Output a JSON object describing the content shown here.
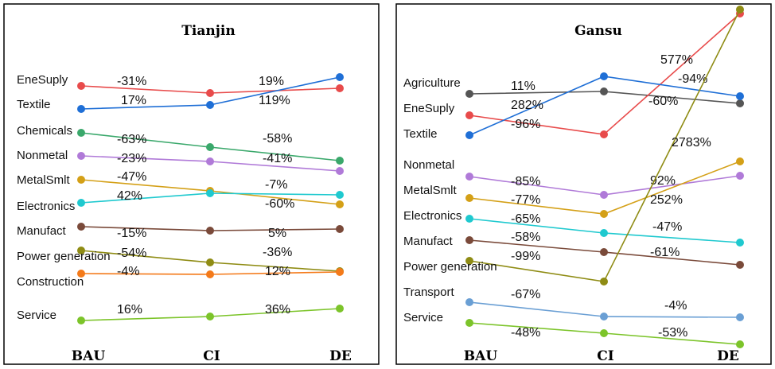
{
  "chart_data": [
    {
      "type": "line",
      "title": "Tianjin",
      "categories": [
        "BAU",
        "CI",
        "DE"
      ],
      "series": [
        {
          "name": "EneSuply",
          "color": "#e84b4b",
          "change_labels": [
            "-31%",
            "19%"
          ]
        },
        {
          "name": "Textile",
          "color": "#1f6fd6",
          "change_labels": [
            "17%",
            "119%"
          ]
        },
        {
          "name": "Chemicals",
          "color": "#3aa86b",
          "change_labels": [
            "-63%",
            "-58%"
          ]
        },
        {
          "name": "Nonmetal",
          "color": "#b07ad8",
          "change_labels": [
            "-23%",
            "-41%"
          ]
        },
        {
          "name": "MetalSmlt",
          "color": "#d4a017",
          "change_labels": [
            "-47%",
            "-7%"
          ]
        },
        {
          "name": "Electronics",
          "color": "#1fc9cf",
          "change_labels": [
            "42%",
            "-60%"
          ]
        },
        {
          "name": "Manufact",
          "color": "#7a4a3a",
          "change_labels": [
            "-15%",
            "5%"
          ]
        },
        {
          "name": "Power generation",
          "color": "#8f8c14",
          "change_labels": [
            "-54%",
            "-36%"
          ]
        },
        {
          "name": "Construction",
          "color": "#f47a1a",
          "change_labels": [
            "-4%",
            "12%"
          ]
        },
        {
          "name": "Service",
          "color": "#7cc42a",
          "change_labels": [
            "16%",
            "36%"
          ]
        }
      ]
    },
    {
      "type": "line",
      "title": "Gansu",
      "categories": [
        "BAU",
        "CI",
        "DE"
      ],
      "series": [
        {
          "name": "Agriculture",
          "color": "#555555",
          "change_labels": [
            "11%",
            "-60%"
          ]
        },
        {
          "name": "EneSuply",
          "color": "#e84b4b",
          "change_labels": [
            "-96%",
            "577%"
          ]
        },
        {
          "name": "Textile",
          "color": "#1f6fd6",
          "change_labels": [
            "282%",
            "-94%"
          ]
        },
        {
          "name": "Nonmetal",
          "color": "#b07ad8",
          "change_labels": [
            "-85%",
            "92%"
          ]
        },
        {
          "name": "MetalSmlt",
          "color": "#d4a017",
          "change_labels": [
            "-77%",
            "252%"
          ]
        },
        {
          "name": "Electronics",
          "color": "#1fc9cf",
          "change_labels": [
            "-65%",
            "-47%"
          ]
        },
        {
          "name": "Manufact",
          "color": "#7a4a3a",
          "change_labels": [
            "-58%",
            "-61%"
          ]
        },
        {
          "name": "Power generation",
          "color": "#8f8c14",
          "change_labels": [
            "-99%",
            "2783%"
          ]
        },
        {
          "name": "Transport",
          "color": "#6a9fd4",
          "change_labels": [
            "-67%",
            "-4%"
          ]
        },
        {
          "name": "Service",
          "color": "#7cc42a",
          "change_labels": [
            "-48%",
            "-53%"
          ]
        }
      ]
    }
  ]
}
